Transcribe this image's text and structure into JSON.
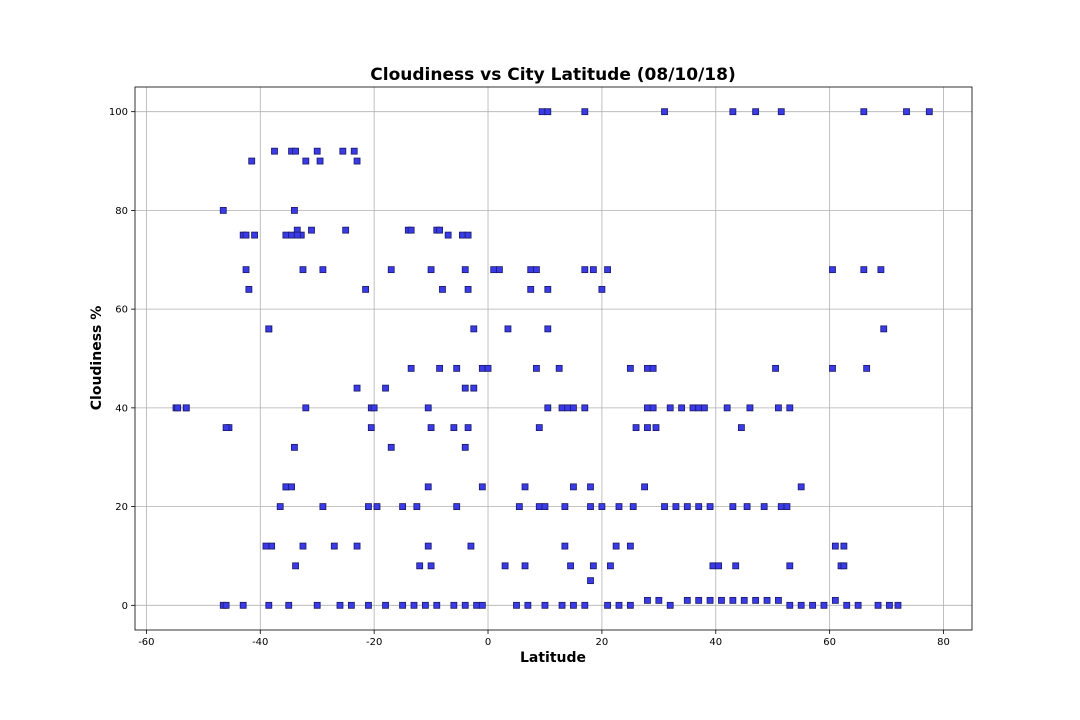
{
  "chart_data": {
    "type": "scatter",
    "title": "Cloudiness vs City Latitude (08/10/18)",
    "xlabel": "Latitude",
    "ylabel": "Cloudiness %",
    "xlim": [
      -62,
      85
    ],
    "ylim": [
      -5,
      105
    ],
    "xticks": [
      -60,
      -40,
      -20,
      0,
      20,
      40,
      60,
      80
    ],
    "yticks": [
      0,
      20,
      40,
      60,
      80,
      100
    ],
    "grid": true,
    "marker": "square",
    "marker_color": "#3a3ae6",
    "marker_edge_color": "#1a1a66",
    "x": [
      -54.8,
      -53.0,
      -46.5,
      -45.5,
      -41.5,
      -38.5,
      -37.5,
      -34.5,
      -33.8,
      -32.0,
      -30.0,
      -29.5,
      -25.5,
      -23.5,
      -23.0,
      -46.5,
      -43.0,
      -42.5,
      -41.0,
      -35.5,
      -34.5,
      -33.5,
      -32.8,
      -31.0,
      -25.0,
      -14.0,
      -13.5,
      -9.0,
      -8.5,
      -7.0,
      -42.5,
      -34.0,
      -32.5,
      -29.0,
      -17.0,
      -10.0,
      -4.0,
      1.0,
      2.0,
      7.5,
      8.5,
      17.0,
      18.5,
      21.0,
      60.5,
      66.0,
      69.0,
      -42.0,
      -21.5,
      -8.0,
      -3.5,
      7.5,
      10.5,
      20.0,
      -38.5,
      -2.5,
      3.5,
      10.5,
      69.5,
      -23.0,
      -18.0,
      -13.5,
      -8.5,
      -5.5,
      -4.0,
      -1.0,
      0.0,
      8.5,
      12.5,
      25.0,
      28.0,
      29.0,
      50.5,
      60.5,
      66.5,
      -46.0,
      -38.0,
      -35.5,
      -34.0,
      -17.0,
      -2.5,
      -54.5,
      -53.0,
      -32.0,
      -20.5,
      -20.0,
      -10.5,
      -4.0,
      10.5,
      13.0,
      14.0,
      15.0,
      17.0,
      28.0,
      29.0,
      32.0,
      34.0,
      36.0,
      37.0,
      38.0,
      42.0,
      46.0,
      51.0,
      53.0,
      -20.5,
      -10.0,
      -6.0,
      -3.5,
      9.0,
      26.0,
      28.0,
      29.5,
      44.5,
      -33.5,
      -4.5,
      -3.5,
      -35.5,
      -34.5,
      -10.5,
      -1.0,
      6.5,
      15.0,
      18.0,
      27.5,
      55.0,
      -36.5,
      -29.0,
      -21.0,
      -19.5,
      -15.0,
      -12.5,
      -5.5,
      5.5,
      9.0,
      10.0,
      13.5,
      18.0,
      20.0,
      23.0,
      25.5,
      31.0,
      33.0,
      35.0,
      37.0,
      39.0,
      43.0,
      45.5,
      48.5,
      51.5,
      52.5,
      -39.0,
      -32.5,
      -27.0,
      -23.0,
      -10.5,
      -3.0,
      13.5,
      22.5,
      25.0,
      61.0,
      62.5,
      -33.8,
      -12.0,
      -10.0,
      3.0,
      6.5,
      14.5,
      18.5,
      21.5,
      39.5,
      40.5,
      43.5,
      53.0,
      62.0,
      62.5,
      18.0,
      -46.0,
      -43.0,
      -38.5,
      -35.0,
      -30.0,
      -26.0,
      -24.0,
      -21.0,
      -18.0,
      -15.0,
      -13.0,
      -11.0,
      -9.0,
      -6.0,
      -4.0,
      -2.0,
      -1.0,
      5.0,
      7.0,
      10.0,
      13.0,
      15.0,
      17.0,
      21.0,
      23.0,
      25.0,
      28.0,
      30.0,
      32.0,
      35.0,
      37.0,
      39.0,
      41.0,
      43.0,
      45.0,
      47.0,
      49.0,
      51.0,
      53.0,
      55.0,
      57.0,
      59.0,
      61.0,
      63.0,
      65.0,
      68.5,
      70.5,
      72.0,
      9.5,
      10.5,
      17.0,
      31.0,
      43.0,
      47.0,
      51.5,
      66.0,
      73.5,
      77.5
    ],
    "y": [
      40,
      40,
      80,
      36,
      90,
      56,
      92,
      92,
      92,
      90,
      92,
      90,
      92,
      92,
      90,
      0,
      75,
      75,
      75,
      75,
      75,
      76,
      75,
      76,
      76,
      76,
      76,
      76,
      76,
      75,
      68,
      80,
      68,
      68,
      68,
      68,
      68,
      68,
      68,
      68,
      68,
      68,
      68,
      68,
      68,
      68,
      68,
      64,
      64,
      64,
      64,
      64,
      64,
      64,
      56,
      56,
      56,
      56,
      56,
      44,
      44,
      48,
      48,
      48,
      44,
      48,
      48,
      48,
      48,
      48,
      48,
      48,
      48,
      48,
      48,
      36,
      12,
      24,
      32,
      32,
      44,
      40,
      40,
      40,
      40,
      40,
      40,
      32,
      40,
      40,
      40,
      40,
      40,
      40,
      40,
      40,
      40,
      40,
      40,
      40,
      40,
      40,
      40,
      40,
      36,
      36,
      36,
      36,
      36,
      36,
      36,
      36,
      36,
      75,
      75,
      75,
      24,
      24,
      24,
      24,
      24,
      24,
      24,
      24,
      24,
      20,
      20,
      20,
      20,
      20,
      20,
      20,
      20,
      20,
      20,
      20,
      20,
      20,
      20,
      20,
      20,
      20,
      20,
      20,
      20,
      20,
      20,
      20,
      20,
      20,
      12,
      12,
      12,
      12,
      12,
      12,
      12,
      12,
      12,
      12,
      12,
      8,
      8,
      8,
      8,
      8,
      8,
      8,
      8,
      8,
      8,
      8,
      8,
      8,
      8,
      5,
      0,
      0,
      0,
      0,
      0,
      0,
      0,
      0,
      0,
      0,
      0,
      0,
      0,
      0,
      0,
      0,
      0,
      0,
      0,
      0,
      0,
      0,
      0,
      0,
      0,
      0,
      1,
      1,
      0,
      1,
      1,
      1,
      1,
      1,
      1,
      1,
      1,
      1,
      0,
      0,
      0,
      0,
      1,
      0,
      0,
      0,
      0,
      0,
      100,
      100,
      100,
      100,
      100,
      100,
      100,
      100,
      100,
      100
    ]
  }
}
